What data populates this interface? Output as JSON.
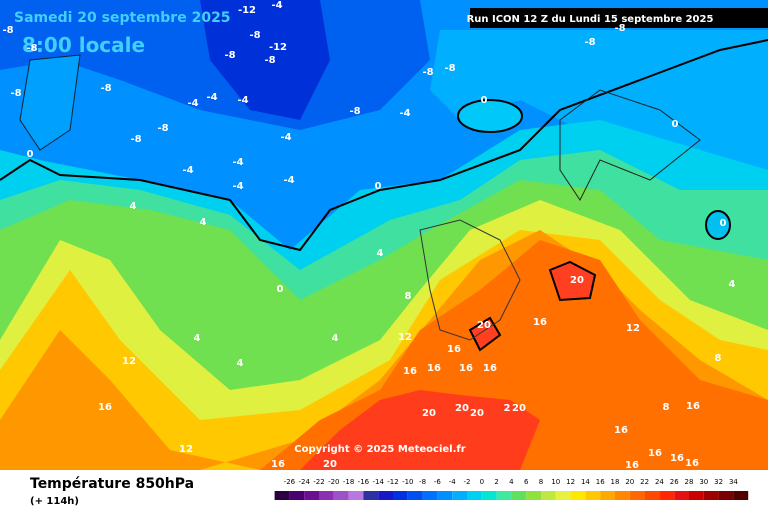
{
  "header": {
    "date": "Samedi 20 septembre 2025",
    "time": "8:00 locale",
    "run": "Run ICON 12 Z du Lundi 15 septembre 2025"
  },
  "copyright": "Copyright © 2025 Meteociel.fr",
  "footer": {
    "title": "Température 850hPa",
    "lead": "(+ 114h)"
  },
  "legend": {
    "labels": [
      -26,
      -24,
      -22,
      -20,
      -18,
      -16,
      -14,
      -12,
      -10,
      -8,
      -6,
      -4,
      -2,
      0,
      2,
      4,
      6,
      8,
      10,
      12,
      14,
      16,
      18,
      20,
      22,
      24,
      26,
      28,
      30,
      32,
      34
    ],
    "colors": [
      "#2a0040",
      "#4b0070",
      "#6a1090",
      "#8a30b0",
      "#a050c8",
      "#b878e0",
      "#3030a0",
      "#1818c8",
      "#0030e0",
      "#0050f0",
      "#0070ff",
      "#0090ff",
      "#00b0ff",
      "#00d0f0",
      "#00e8d0",
      "#40e8a0",
      "#60e060",
      "#90e040",
      "#c0e840",
      "#e8f040",
      "#ffe800",
      "#ffc800",
      "#ffa800",
      "#ff8800",
      "#ff6800",
      "#ff4800",
      "#ff2800",
      "#e81010",
      "#c80000",
      "#a00000",
      "#780000",
      "#500000"
    ]
  },
  "map": {
    "labels": [
      "-12",
      "-4",
      "-8",
      "-8",
      "-8",
      "-12",
      "-8",
      "-8",
      "-8",
      "-8",
      "-8",
      "-8",
      "-8",
      "-8",
      "-4",
      "-8",
      "-8",
      "-8",
      "-4",
      "-4",
      "-4",
      "-4",
      "-4",
      "-4",
      "-4",
      "-4",
      "0",
      "0",
      "0",
      "0",
      "0",
      "0",
      "4",
      "4",
      "4",
      "4",
      "4",
      "4",
      "4",
      "8",
      "8",
      "8",
      "12",
      "12",
      "12",
      "12",
      "16",
      "16",
      "16",
      "16",
      "16",
      "16",
      "16",
      "16",
      "16",
      "16",
      "16",
      "16",
      "16",
      "20",
      "20",
      "20",
      "20",
      "20",
      "2",
      "20",
      "20",
      "16"
    ]
  }
}
